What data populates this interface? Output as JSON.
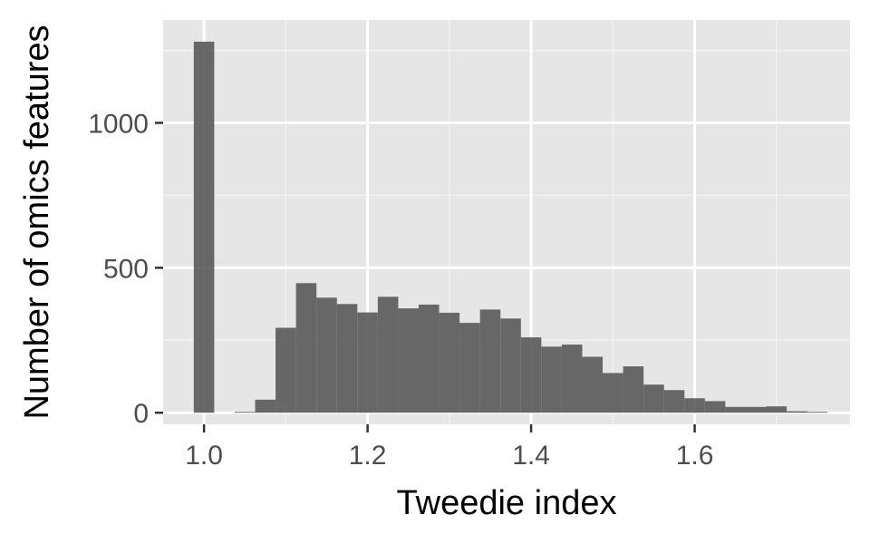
{
  "chart_data": {
    "type": "bar",
    "title": "",
    "xlabel": "Tweedie index",
    "ylabel": "Number of omics features",
    "xlim": [
      0.95,
      1.79
    ],
    "ylim": [
      -40,
      1355
    ],
    "x_ticks": [
      1.0,
      1.2,
      1.4,
      1.6
    ],
    "x_tick_labels": [
      "1.0",
      "1.2",
      "1.4",
      "1.6"
    ],
    "y_ticks": [
      0,
      500,
      1000
    ],
    "y_tick_labels": [
      "0",
      "500",
      "1000"
    ],
    "grid": true,
    "legend": "none",
    "bin_width": 0.025,
    "bins": [
      {
        "x": 1.0,
        "count": 1280
      },
      {
        "x": 1.025,
        "count": 0
      },
      {
        "x": 1.05,
        "count": 3
      },
      {
        "x": 1.075,
        "count": 45
      },
      {
        "x": 1.1,
        "count": 293
      },
      {
        "x": 1.125,
        "count": 447
      },
      {
        "x": 1.15,
        "count": 397
      },
      {
        "x": 1.175,
        "count": 375
      },
      {
        "x": 1.2,
        "count": 346
      },
      {
        "x": 1.225,
        "count": 400
      },
      {
        "x": 1.25,
        "count": 360
      },
      {
        "x": 1.275,
        "count": 373
      },
      {
        "x": 1.3,
        "count": 345
      },
      {
        "x": 1.325,
        "count": 310
      },
      {
        "x": 1.35,
        "count": 356
      },
      {
        "x": 1.375,
        "count": 325
      },
      {
        "x": 1.4,
        "count": 260
      },
      {
        "x": 1.425,
        "count": 228
      },
      {
        "x": 1.45,
        "count": 235
      },
      {
        "x": 1.475,
        "count": 193
      },
      {
        "x": 1.5,
        "count": 137
      },
      {
        "x": 1.525,
        "count": 160
      },
      {
        "x": 1.55,
        "count": 97
      },
      {
        "x": 1.575,
        "count": 78
      },
      {
        "x": 1.6,
        "count": 50
      },
      {
        "x": 1.625,
        "count": 40
      },
      {
        "x": 1.65,
        "count": 20
      },
      {
        "x": 1.675,
        "count": 20
      },
      {
        "x": 1.7,
        "count": 22
      },
      {
        "x": 1.725,
        "count": 5
      },
      {
        "x": 1.75,
        "count": 3
      }
    ],
    "colors": {
      "bar": "#595959",
      "panel": "#e6e6e6",
      "grid_major": "#ffffff",
      "grid_minor": "#f2f2f2",
      "tick": "#333333"
    }
  }
}
